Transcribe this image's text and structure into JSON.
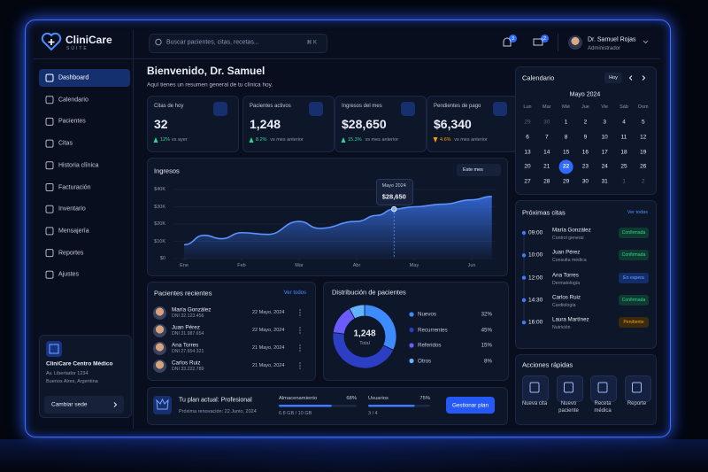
{
  "brand": {
    "name": "CliniCare",
    "tagline": "SUITE"
  },
  "search": {
    "placeholder": "Buscar pacientes, citas, recetas...",
    "shortcut": "⌘ K"
  },
  "notifications": {
    "alerts": 3,
    "messages": 2
  },
  "user": {
    "name": "Dr. Samuel Rojas",
    "role": "Administrador"
  },
  "nav": {
    "items": [
      "Dashboard",
      "Calendario",
      "Pacientes",
      "Citas",
      "Historia clínica",
      "Facturación",
      "Inventario",
      "Mensajería",
      "Reportes",
      "Ajustes"
    ],
    "active": 0
  },
  "clinic": {
    "name": "CliniCare Centro Médico",
    "address": [
      "Av. Libertador 1234",
      "Buenos Aires, Argentina"
    ],
    "button": "Cambiar sede"
  },
  "greeting": {
    "title": "Bienvenido, Dr. Samuel",
    "subtitle": "Aquí tienes un resumen general de tu clínica hoy."
  },
  "stats": [
    {
      "label": "Citas de hoy",
      "value": "32",
      "change": "12%",
      "note": "vs ayer",
      "trend": "up"
    },
    {
      "label": "Pacientes activos",
      "value": "1,248",
      "change": "8.2%",
      "note": "vs mes anterior",
      "trend": "up"
    },
    {
      "label": "Ingresos del mes",
      "value": "$28,650",
      "change": "15.3%",
      "note": "vs mes anterior",
      "trend": "up"
    },
    {
      "label": "Pendientes de pago",
      "value": "$6,340",
      "change": "4.6%",
      "note": "vs mes anterior",
      "trend": "down"
    }
  ],
  "income": {
    "title": "Ingresos",
    "period": "Este mes",
    "xticks": [
      {
        "value": 0,
        "label": "Ene"
      },
      {
        "value": 1,
        "label": "Feb"
      },
      {
        "value": 2,
        "label": "Mar"
      },
      {
        "value": 3,
        "label": "Abr"
      },
      {
        "value": 4,
        "label": "May"
      },
      {
        "value": 5,
        "label": "Jun"
      }
    ],
    "xlim": [
      -0.1,
      5.35
    ],
    "x": [
      0,
      0.35,
      0.65,
      1,
      1.45,
      2,
      2.35,
      3,
      3.35,
      3.65,
      4,
      4.5,
      5,
      5.35
    ],
    "values": [
      8000,
      13500,
      11500,
      15000,
      14000,
      21500,
      17500,
      21500,
      25000,
      28650,
      30000,
      31500,
      34000,
      36000
    ],
    "ylim": [
      0,
      40000
    ],
    "yticks": [
      {
        "value": 0,
        "label": "$0"
      },
      {
        "value": 10000,
        "label": "$10K"
      },
      {
        "value": 20000,
        "label": "$20K"
      },
      {
        "value": 30000,
        "label": "$30K"
      },
      {
        "value": 40000,
        "label": "$40K"
      }
    ],
    "grid": true,
    "color": "#3d7bff",
    "tooltip": {
      "point": 9,
      "label": "Mayo 2024",
      "value": "$28,650"
    }
  },
  "patients": {
    "title": "Pacientes recientes",
    "link": "Ver todos",
    "rows": [
      {
        "name": "María González",
        "dni": "DNI 32.123.456",
        "date": "22 Mayo, 2024"
      },
      {
        "name": "Juan Pérez",
        "dni": "DNI 31.987.654",
        "date": "22 Mayo, 2024"
      },
      {
        "name": "Ana Torres",
        "dni": "DNI 27.654.321",
        "date": "21 Mayo, 2024"
      },
      {
        "name": "Carlos Ruiz",
        "dni": "DNI 33.222.789",
        "date": "21 Mayo, 2024"
      }
    ]
  },
  "distribution": {
    "title": "Distribución de pacientes",
    "total": {
      "value": "1,248",
      "label": "Total"
    },
    "categories": [
      "Nuevos",
      "Recurrentes",
      "Referidos",
      "Otros"
    ],
    "values": [
      32,
      45,
      15,
      8
    ],
    "value_labels": [
      "32%",
      "45%",
      "15%",
      "8%"
    ],
    "colors": [
      "#3d8bff",
      "#2c3fc4",
      "#6b5cff",
      "#63b3ff"
    ]
  },
  "plan": {
    "title": "Tu plan actual: Profesional",
    "renewal": "Próxima renovación: 22 Junio, 2024",
    "storage": {
      "label": "Almacenamiento",
      "percent": 68,
      "percent_label": "68%",
      "detail": "6.8 GB / 10 GB"
    },
    "users": {
      "label": "Usuarios",
      "percent": 75,
      "percent_label": "75%",
      "detail": "3 / 4"
    },
    "button": "Gestionar plan"
  },
  "calendar": {
    "title": "Calendario",
    "today_button": "Hoy",
    "month": "Mayo 2024",
    "weekdays": [
      "Lun",
      "Mar",
      "Mié",
      "Jue",
      "Vie",
      "Sáb",
      "Dom"
    ],
    "days": [
      [
        29,
        30,
        1,
        2,
        3,
        4,
        5
      ],
      [
        6,
        7,
        8,
        9,
        10,
        11,
        12
      ],
      [
        13,
        14,
        15,
        16,
        17,
        18,
        19
      ],
      [
        20,
        21,
        22,
        23,
        24,
        25,
        26
      ],
      [
        27,
        28,
        29,
        30,
        31,
        1,
        2
      ]
    ],
    "selected_day": 22
  },
  "appointments": {
    "title": "Próximas citas",
    "link": "Ver todas",
    "items": [
      {
        "time": "09:00",
        "name": "María González",
        "type": "Control general",
        "status": "Confirmada"
      },
      {
        "time": "10:00",
        "name": "Juan Pérez",
        "type": "Consulta médica",
        "status": "Confirmada"
      },
      {
        "time": "12:00",
        "name": "Ana Torres",
        "type": "Dermatología",
        "status": "En espera"
      },
      {
        "time": "14:30",
        "name": "Carlos Ruiz",
        "type": "Cardiología",
        "status": "Confirmada"
      },
      {
        "time": "16:00",
        "name": "Laura Martínez",
        "type": "Nutrición",
        "status": "Pendiente"
      }
    ]
  },
  "quick_actions": {
    "title": "Acciones rápidas",
    "items": [
      "Nueva cita",
      "Nuevo paciente",
      "Receta médica",
      "Reporte"
    ]
  }
}
